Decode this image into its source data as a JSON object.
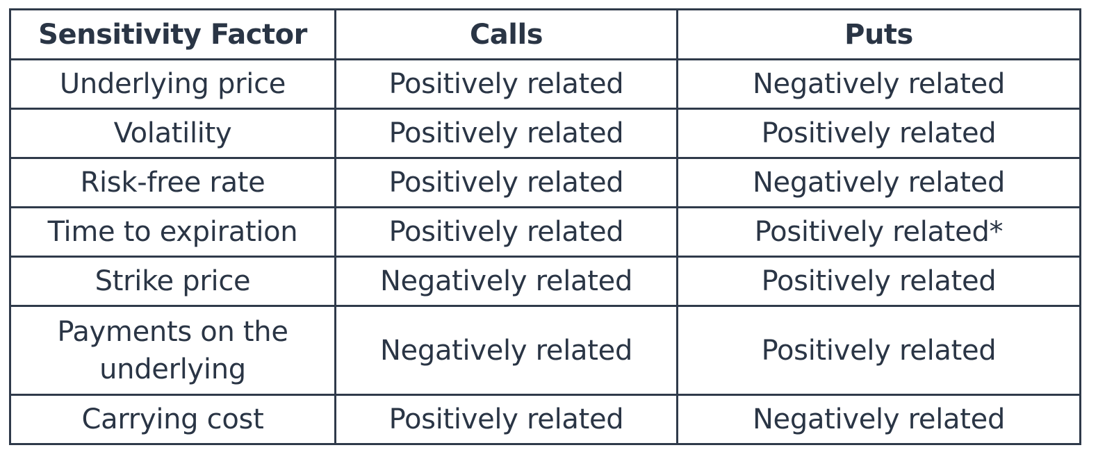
{
  "table": {
    "headers": [
      "Sensitivity Factor",
      "Calls",
      "Puts"
    ],
    "rows": [
      {
        "factor": "Underlying price",
        "calls": "Positively related",
        "puts": "Negatively related"
      },
      {
        "factor": "Volatility",
        "calls": "Positively related",
        "puts": "Positively related"
      },
      {
        "factor": "Risk-free rate",
        "calls": "Positively related",
        "puts": "Negatively related"
      },
      {
        "factor": "Time to expiration",
        "calls": "Positively related",
        "puts": "Positively related*"
      },
      {
        "factor": "Strike price",
        "calls": "Negatively related",
        "puts": "Positively related"
      },
      {
        "factor": "Payments on the underlying",
        "calls": "Negatively related",
        "puts": "Positively related"
      },
      {
        "factor": "Carrying cost",
        "calls": "Positively related",
        "puts": "Negatively related"
      }
    ]
  }
}
